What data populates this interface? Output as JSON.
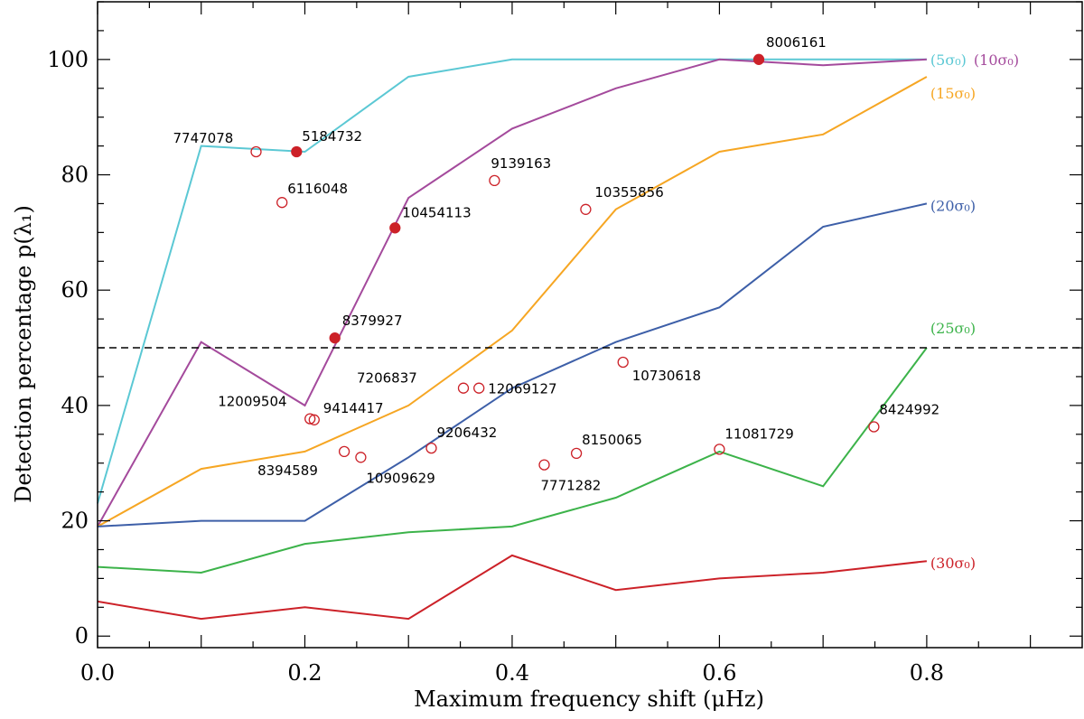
{
  "chart_data": {
    "type": "line",
    "xlabel": "Maximum frequency shift (μHz)",
    "ylabel": "Detection percentage p(λ₁)",
    "xlim": [
      0.0,
      0.95
    ],
    "ylim": [
      -2,
      110
    ],
    "x_ticks": [
      "0.0",
      "0.2",
      "0.4",
      "0.6",
      "0.8"
    ],
    "y_ticks": [
      "0",
      "20",
      "40",
      "60",
      "80",
      "100"
    ],
    "x_tick_values": [
      0.0,
      0.2,
      0.4,
      0.6,
      0.8
    ],
    "y_tick_values": [
      0,
      20,
      40,
      60,
      80,
      100
    ],
    "x": [
      0.0,
      0.1,
      0.2,
      0.3,
      0.4,
      0.5,
      0.6,
      0.7,
      0.8
    ],
    "threshold": 50,
    "series": [
      {
        "name": "(5σ₀)",
        "color": "#5bc8d4",
        "values": [
          23,
          85,
          84,
          97,
          100,
          100,
          100,
          100,
          100
        ]
      },
      {
        "name": "(10σ₀)",
        "color": "#a44a9c",
        "values": [
          19,
          51,
          40,
          76,
          88,
          95,
          100,
          99,
          100
        ]
      },
      {
        "name": "(15σ₀)",
        "color": "#f6a623",
        "values": [
          19,
          29,
          32,
          40,
          53,
          74,
          84,
          87,
          97
        ]
      },
      {
        "name": "(20σ₀)",
        "color": "#3d5fa8",
        "values": [
          19,
          20,
          20,
          31,
          43,
          51,
          57,
          71,
          75
        ]
      },
      {
        "name": "(25σ₀)",
        "color": "#3cb34a",
        "values": [
          12,
          11,
          16,
          18,
          19,
          24,
          32,
          26,
          50
        ]
      },
      {
        "name": "(30σ₀)",
        "color": "#cc2128",
        "values": [
          6,
          3,
          5,
          3,
          14,
          8,
          10,
          11,
          13
        ]
      }
    ],
    "points": [
      {
        "label": "7747078",
        "x": 0.153,
        "y": 84,
        "filled": false
      },
      {
        "label": "5184732",
        "x": 0.192,
        "y": 84,
        "filled": true
      },
      {
        "label": "6116048",
        "x": 0.178,
        "y": 75.2,
        "filled": false
      },
      {
        "label": "10454113",
        "x": 0.287,
        "y": 70.8,
        "filled": true
      },
      {
        "label": "9139163",
        "x": 0.383,
        "y": 79,
        "filled": false
      },
      {
        "label": "10355856",
        "x": 0.471,
        "y": 74,
        "filled": false
      },
      {
        "label": "8006161",
        "x": 0.638,
        "y": 100,
        "filled": true
      },
      {
        "label": "8379927",
        "x": 0.229,
        "y": 51.7,
        "filled": true
      },
      {
        "label": "7206837",
        "x": 0.353,
        "y": 43,
        "filled": false
      },
      {
        "label": "12069127",
        "x": 0.368,
        "y": 43,
        "filled": false
      },
      {
        "label": "10730618",
        "x": 0.507,
        "y": 47.5,
        "filled": false
      },
      {
        "label": "12009504",
        "x": 0.205,
        "y": 37.7,
        "filled": false
      },
      {
        "label": "9414417",
        "x": 0.209,
        "y": 37.5,
        "filled": false
      },
      {
        "label": "8394589",
        "x": 0.238,
        "y": 32,
        "filled": false
      },
      {
        "label": "10909629",
        "x": 0.254,
        "y": 31,
        "filled": false
      },
      {
        "label": "9206432",
        "x": 0.322,
        "y": 32.6,
        "filled": false
      },
      {
        "label": "7771282",
        "x": 0.431,
        "y": 29.7,
        "filled": false
      },
      {
        "label": "8150065",
        "x": 0.462,
        "y": 31.7,
        "filled": false
      },
      {
        "label": "11081729",
        "x": 0.6,
        "y": 32.4,
        "filled": false
      },
      {
        "label": "8424992",
        "x": 0.749,
        "y": 36.3,
        "filled": false
      }
    ]
  }
}
